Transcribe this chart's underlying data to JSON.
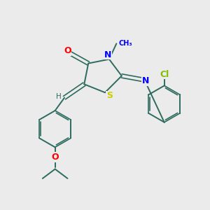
{
  "bg_color": "#ebebeb",
  "bond_color": "#2d6b5e",
  "atom_colors": {
    "O": "#ff0000",
    "N": "#0000ff",
    "S": "#cccc00",
    "Cl": "#7fbf00",
    "H": "#2d6b5e"
  },
  "figsize": [
    3.0,
    3.0
  ],
  "dpi": 100
}
